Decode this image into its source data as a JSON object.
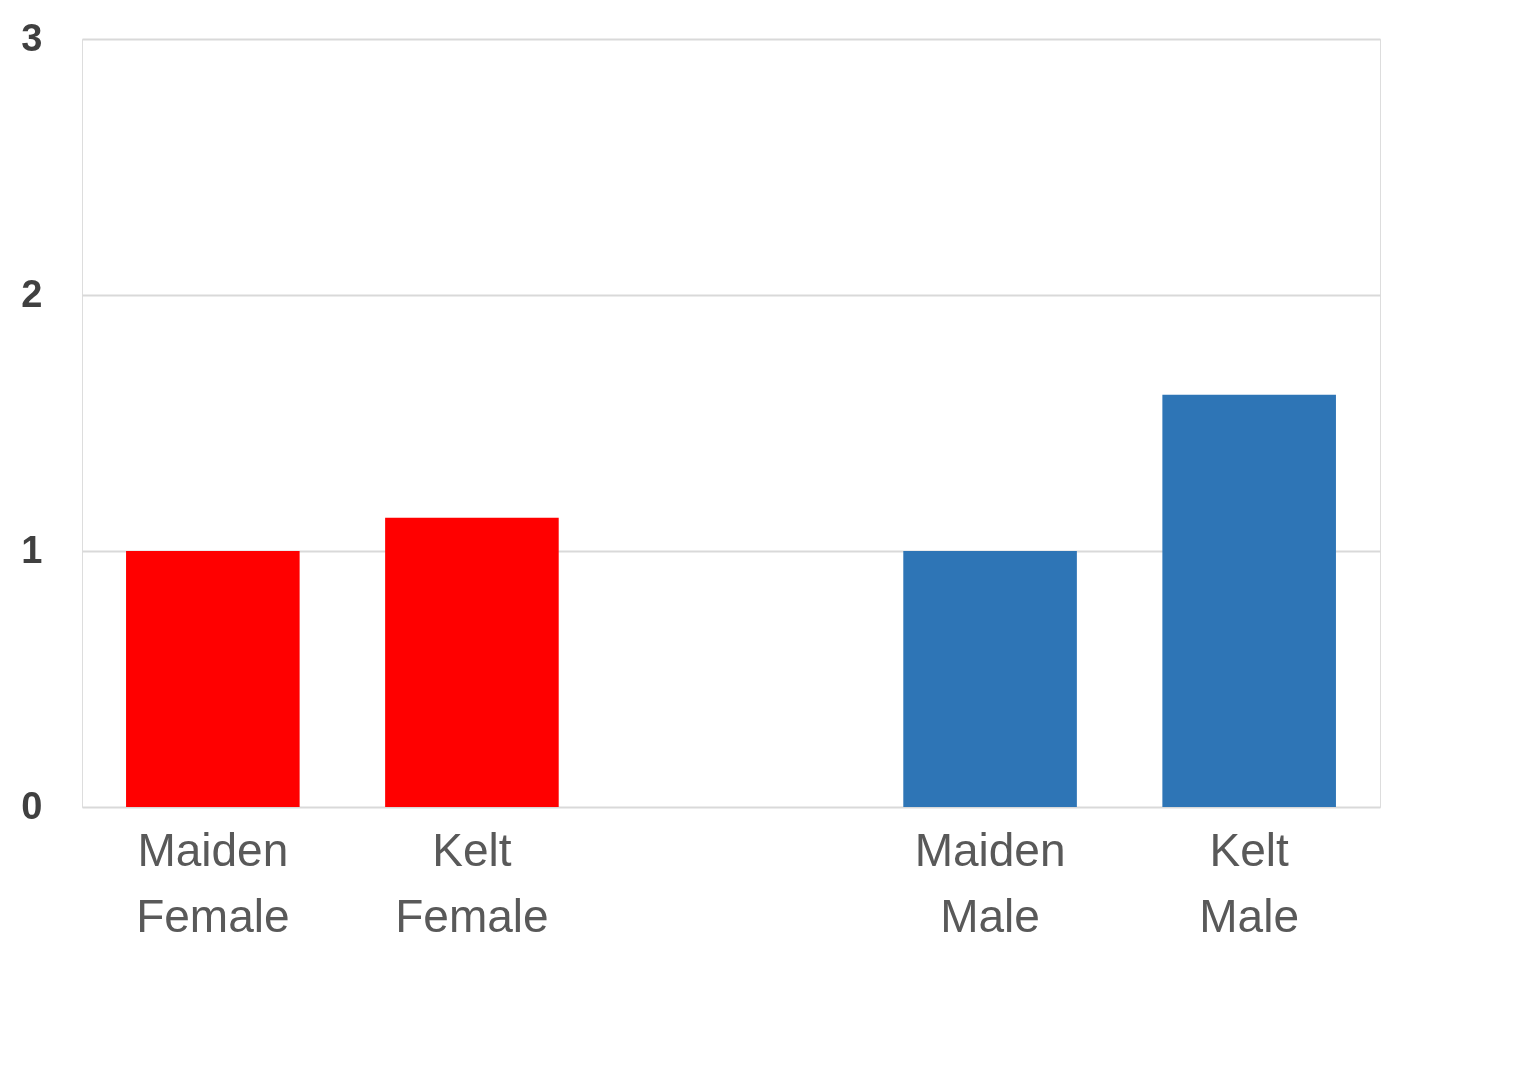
{
  "chart_data": {
    "type": "bar",
    "categories": [
      "Maiden Female",
      "Kelt Female",
      null,
      "Maiden Male",
      "Kelt Male"
    ],
    "values": [
      1.0,
      1.13,
      null,
      1.0,
      1.61
    ],
    "colors": [
      "#ff0000",
      "#ff0000",
      null,
      "#2e75b6",
      "#2e75b6"
    ],
    "ylim": [
      0,
      3
    ],
    "yticks": [
      0,
      1,
      2,
      3
    ],
    "grid": "y"
  }
}
